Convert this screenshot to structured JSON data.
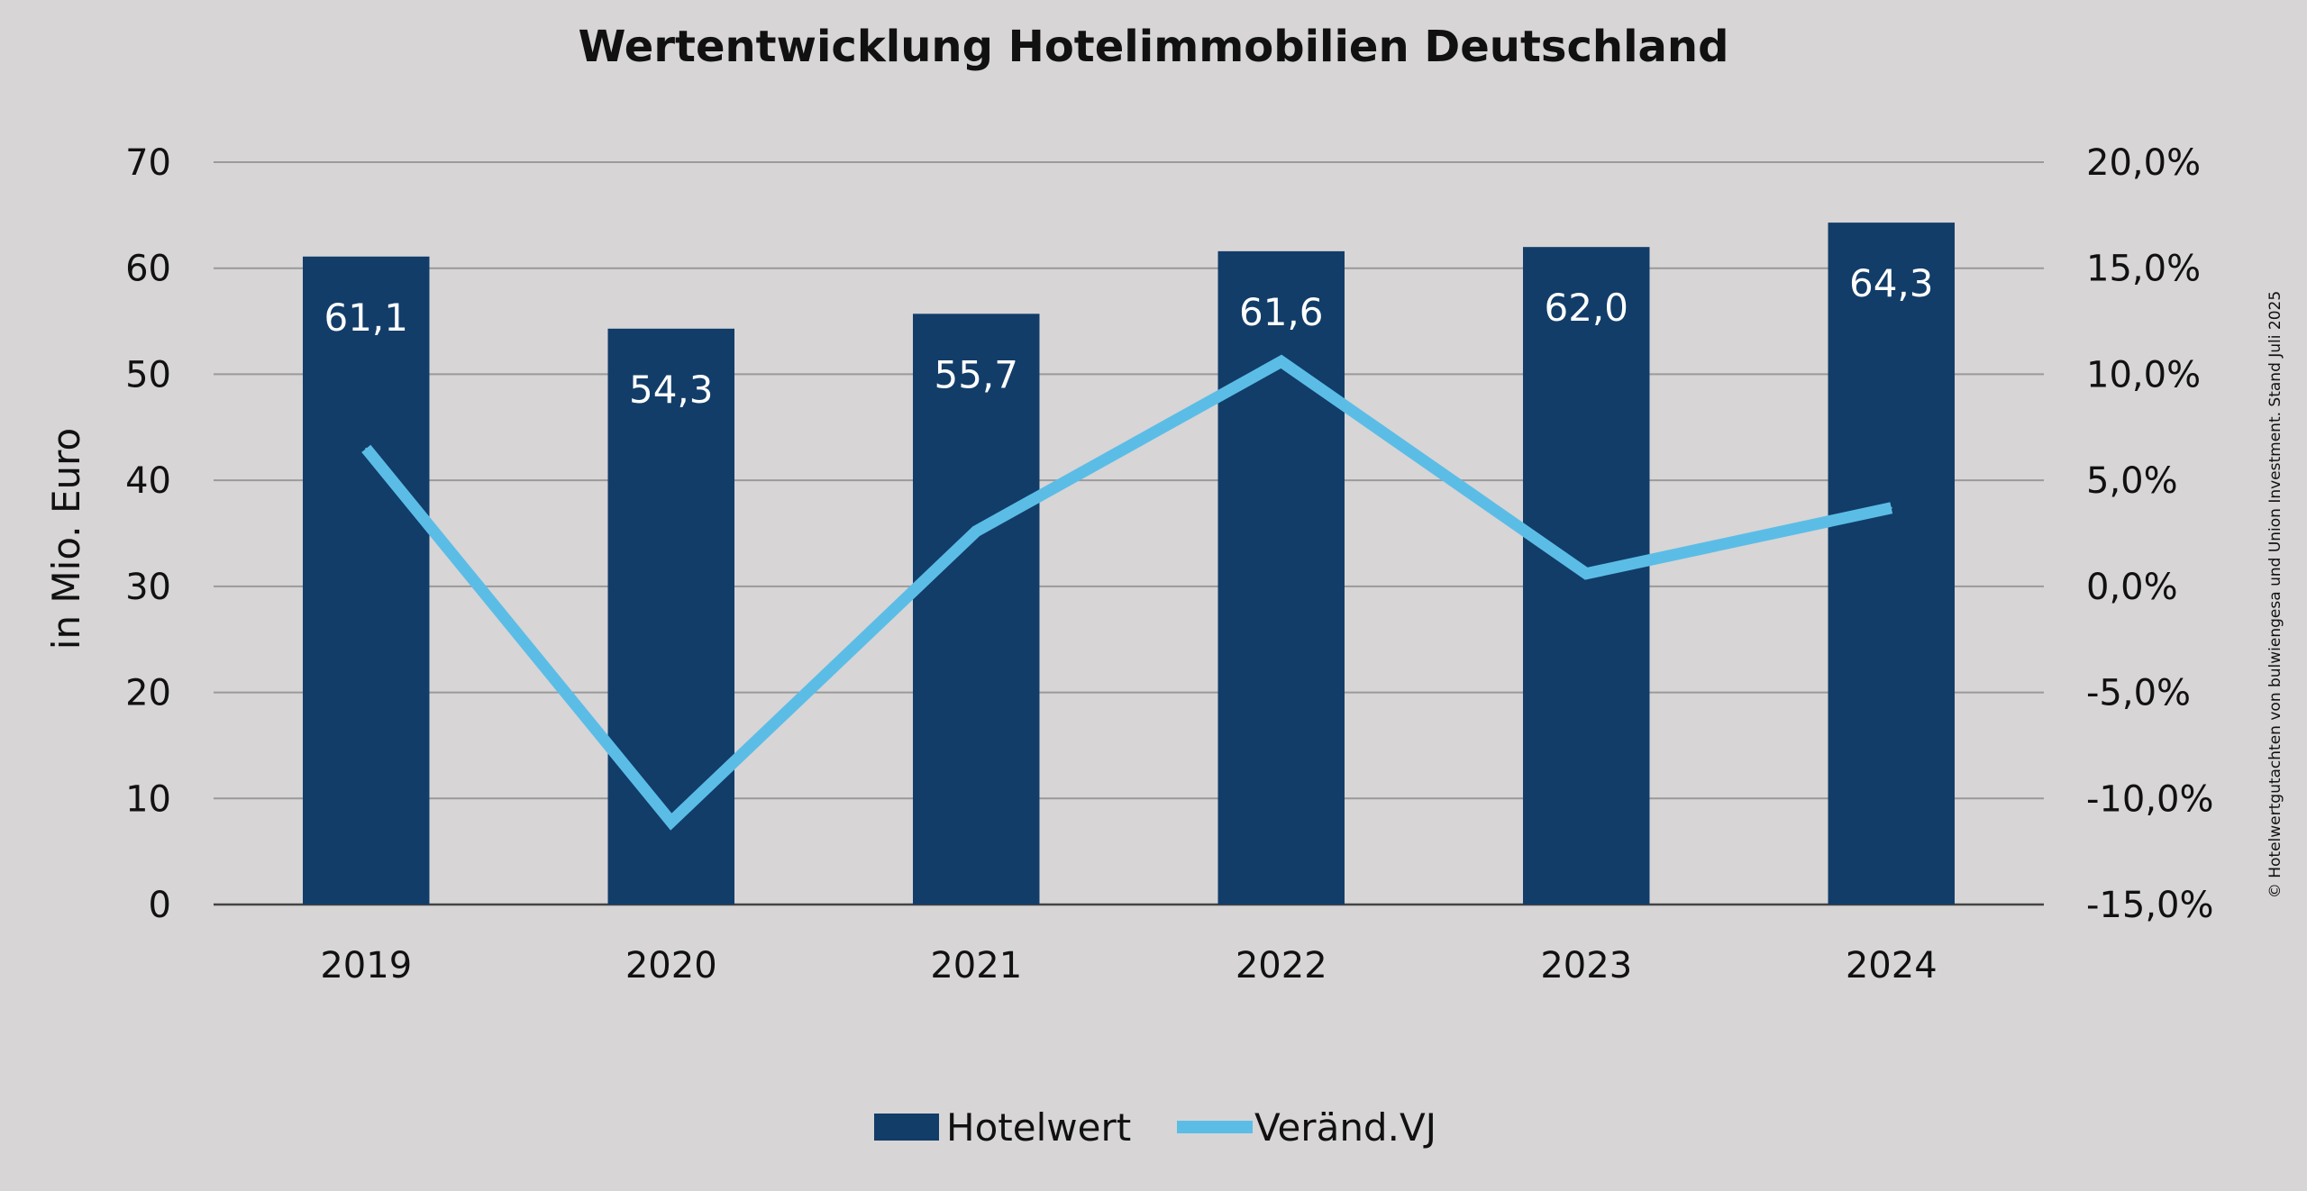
{
  "chart_data": {
    "type": "bar",
    "title": "Wertentwicklung Hotelimmobilien Deutschland",
    "ylabel": "in Mio. Euro",
    "categories": [
      "2019",
      "2020",
      "2021",
      "2022",
      "2023",
      "2024"
    ],
    "ylim": [
      0,
      70
    ],
    "y_ticks": [
      "0",
      "10",
      "20",
      "30",
      "40",
      "50",
      "60",
      "70"
    ],
    "y2lim": [
      -15,
      20
    ],
    "y2_ticks": [
      "-15,0%",
      "-10,0%",
      "-5,0%",
      "0,0%",
      "5,0%",
      "10,0%",
      "15,0%",
      "20,0%"
    ],
    "grid": true,
    "legend_position": "bottom",
    "series": [
      {
        "name": "Hotelwert",
        "kind": "bar",
        "axis": "left",
        "color": "#123d69",
        "values": [
          61.1,
          54.3,
          55.7,
          61.6,
          62.0,
          64.3
        ],
        "labels": [
          "61,1",
          "54,3",
          "55,7",
          "61,6",
          "62,0",
          "64,3"
        ]
      },
      {
        "name": "Veränd.VJ",
        "kind": "line",
        "axis": "right",
        "color": "#5bbde6",
        "values": [
          6.5,
          -11.1,
          2.6,
          10.6,
          0.6,
          3.7
        ]
      }
    ],
    "credit": "© Hotelwertgutachten von bulwiengesa und Union Investment. Stand Juli 2025"
  }
}
